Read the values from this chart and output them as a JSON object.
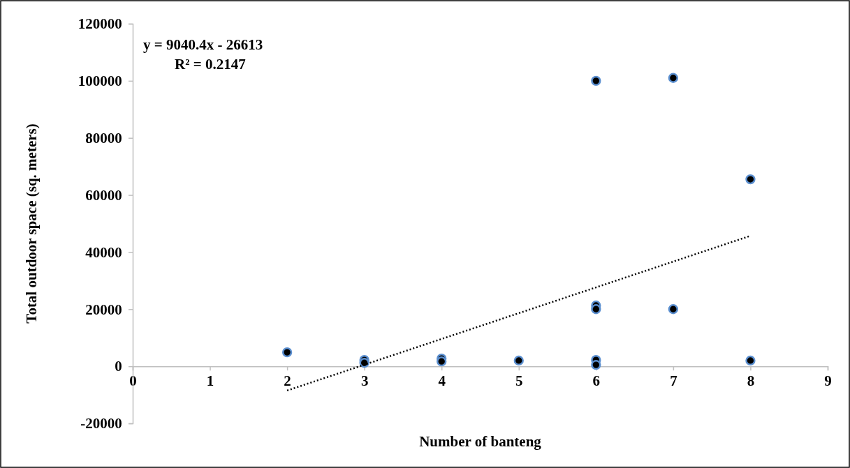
{
  "chart_data": {
    "type": "scatter",
    "xlabel": "Number of banteng",
    "ylabel": "Total outdoor space (sq. meters)",
    "annotations": [
      "y = 9040.4x - 26613",
      "R² = 0.2147"
    ],
    "series": [
      {
        "color": "#000000",
        "marker": "circle",
        "x": [
          2,
          3,
          3,
          4,
          4,
          5,
          6,
          6,
          6,
          6,
          6,
          7,
          7,
          8,
          8
        ],
        "values": [
          4900,
          2200,
          1200,
          2700,
          1700,
          2000,
          100000,
          21300,
          20000,
          2200,
          500,
          101000,
          20000,
          65500,
          2000
        ]
      },
      {
        "type": "line",
        "color": "#000000",
        "line_style": "dotted",
        "marker": "none",
        "x": [
          2,
          8
        ],
        "values": [
          -8500,
          45700
        ]
      }
    ],
    "xlim": [
      0,
      9
    ],
    "xticks": [
      0,
      1,
      2,
      3,
      4,
      5,
      6,
      7,
      8,
      9
    ],
    "ylim": [
      -20000,
      120000
    ],
    "yticks": [
      -20000,
      0,
      20000,
      40000,
      60000,
      80000,
      100000,
      120000
    ],
    "grid": false
  }
}
